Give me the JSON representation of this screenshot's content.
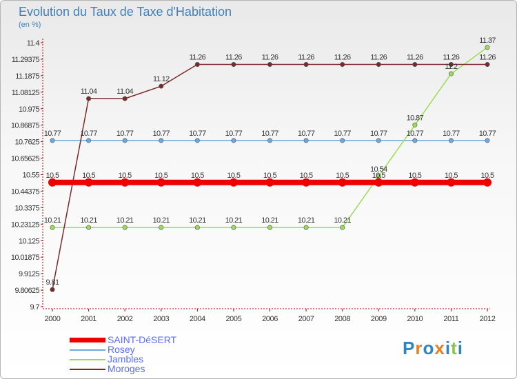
{
  "title": "Evolution du Taux de Taxe d'Habitation",
  "subtitle": "(en %)",
  "logo": {
    "letters": [
      "P",
      "r",
      "o",
      "x",
      "i",
      "t",
      "i"
    ],
    "colors": [
      "#2e86c1",
      "#e67e22",
      "#2e86c1",
      "#e67e22",
      "#2e86c1",
      "#8bc34a",
      "#2e86c1"
    ]
  },
  "chart_data": {
    "type": "line",
    "title": "Evolution du Taux de Taxe d'Habitation",
    "ylabel": "(en %)",
    "xlabel": "",
    "categories": [
      "2000",
      "2001",
      "2002",
      "2003",
      "2004",
      "2005",
      "2006",
      "2007",
      "2008",
      "2009",
      "2010",
      "2011",
      "2012"
    ],
    "ylim": [
      9.7,
      11.4
    ],
    "yticks": [
      "9.7",
      "9.80625",
      "9.9125",
      "10.01875",
      "10.125",
      "10.23125",
      "10.3375",
      "10.44375",
      "10.55",
      "10.65625",
      "10.7625",
      "10.86875",
      "10.975",
      "11.08125",
      "11.1875",
      "11.29375",
      "11.4"
    ],
    "grid": false,
    "series": [
      {
        "name": "SAINT-DéSERT",
        "color": "#ee0000",
        "width": 8,
        "marker": 6,
        "values": [
          10.5,
          10.5,
          10.5,
          10.5,
          10.5,
          10.5,
          10.5,
          10.5,
          10.5,
          10.5,
          10.5,
          10.5,
          10.5
        ],
        "labels": [
          "10.5",
          "10.5",
          "10.5",
          "10.5",
          "10.5",
          "10.5",
          "10.5",
          "10.5",
          "10.5",
          "10.5",
          "10.5",
          "10.5",
          "10.5"
        ]
      },
      {
        "name": "Rosey",
        "color": "#6fa8dc",
        "width": 1.5,
        "marker": 3.2,
        "values": [
          10.77,
          10.77,
          10.77,
          10.77,
          10.77,
          10.77,
          10.77,
          10.77,
          10.77,
          10.77,
          10.77,
          10.77,
          10.77
        ],
        "labels": [
          "10.77",
          "10.77",
          "10.77",
          "10.77",
          "10.77",
          "10.77",
          "10.77",
          "10.77",
          "10.77",
          "10.77",
          "10.77",
          "10.77",
          "10.77"
        ]
      },
      {
        "name": "Jambles",
        "color": "#99dd55",
        "width": 1.5,
        "marker": 3.2,
        "values": [
          10.21,
          10.21,
          10.21,
          10.21,
          10.21,
          10.21,
          10.21,
          10.21,
          10.21,
          10.54,
          10.87,
          11.2,
          11.37
        ],
        "labels": [
          "10.21",
          "10.21",
          "10.21",
          "10.21",
          "10.21",
          "10.21",
          "10.21",
          "10.21",
          "10.21",
          "10.54",
          "10.87",
          "11.2",
          "11.37"
        ]
      },
      {
        "name": "Moroges",
        "color": "#7a2a2a",
        "width": 1.5,
        "marker": 3.2,
        "values": [
          9.81,
          11.04,
          11.04,
          11.12,
          11.26,
          11.26,
          11.26,
          11.26,
          11.26,
          11.26,
          11.26,
          11.26,
          11.26
        ],
        "labels": [
          "9.81",
          "11.04",
          "11.04",
          "11.12",
          "11.26",
          "11.26",
          "11.26",
          "11.26",
          "11.26",
          "11.26",
          "11.26",
          "11.26",
          "11.26"
        ]
      }
    ]
  }
}
